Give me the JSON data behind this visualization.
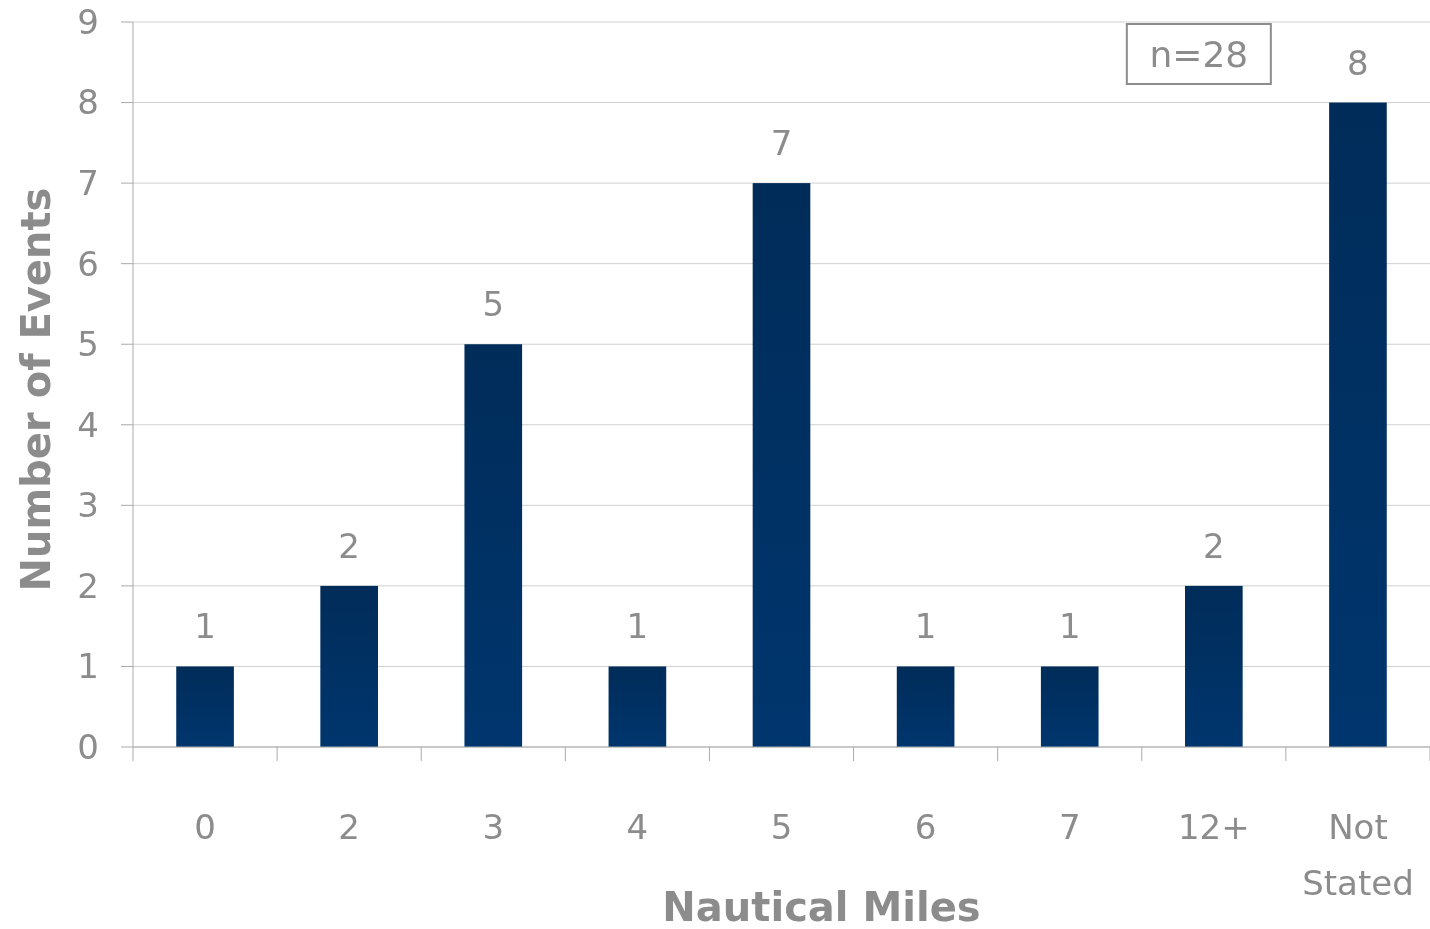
{
  "chart_data": {
    "type": "bar",
    "xlabel": "Nautical Miles",
    "ylabel": "Number of Events",
    "categories": [
      "0",
      "2",
      "3",
      "4",
      "5",
      "6",
      "7",
      "12+",
      "Not Stated"
    ],
    "values": [
      1,
      2,
      5,
      1,
      7,
      1,
      1,
      2,
      8
    ],
    "color": "#00366e",
    "ylim": [
      0,
      9
    ],
    "yticks": [
      0,
      1,
      2,
      3,
      4,
      5,
      6,
      7,
      8,
      9
    ],
    "grid": "y",
    "data_labels": true,
    "annotations": [
      "n=28"
    ]
  }
}
